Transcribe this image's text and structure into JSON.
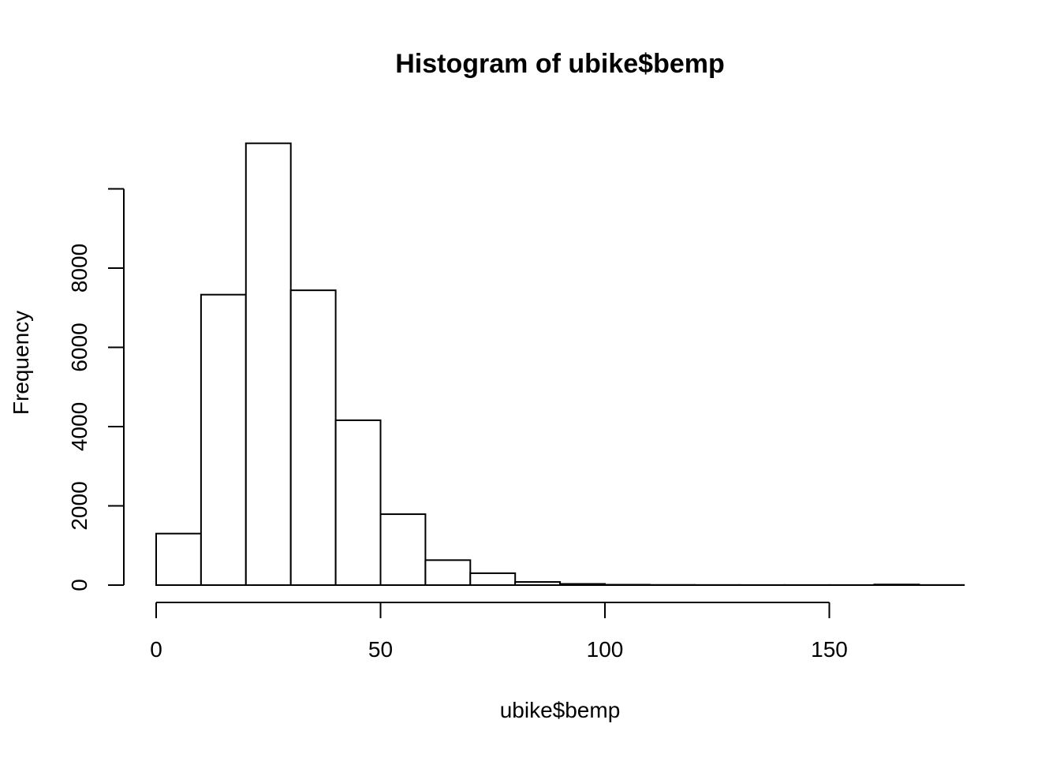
{
  "chart_data": {
    "type": "bar",
    "title": "Histogram of ubike$bemp",
    "xlabel": "ubike$bemp",
    "ylabel": "Frequency",
    "bin_edges": [
      0,
      10,
      20,
      30,
      40,
      50,
      60,
      70,
      80,
      90,
      100,
      110,
      120,
      130,
      140,
      150,
      160,
      170,
      180
    ],
    "values": [
      1300,
      7330,
      11150,
      7440,
      4160,
      1790,
      630,
      300,
      80,
      30,
      10,
      5,
      3,
      2,
      2,
      2,
      15,
      3
    ],
    "xlim": [
      0,
      180
    ],
    "ylim": [
      0,
      11150
    ],
    "x_ticks": [
      0,
      50,
      100,
      150
    ],
    "x_tick_labels": [
      "0",
      "50",
      "100",
      "150"
    ],
    "y_ticks": [
      0,
      2000,
      4000,
      6000,
      8000,
      10000
    ],
    "y_tick_labels": [
      "0",
      "2000",
      "4000",
      "6000",
      "8000",
      ""
    ],
    "grid": false,
    "legend": "none",
    "colors": {
      "bar_fill": "#ffffff",
      "bar_stroke": "#000000",
      "background": "#ffffff"
    }
  }
}
